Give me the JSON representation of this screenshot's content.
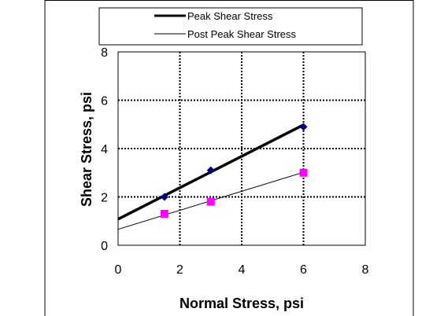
{
  "chart_data": {
    "type": "scatter",
    "xlabel": "Normal Stress, psi",
    "ylabel": "Shear Stress, psi",
    "xlim": [
      0,
      8
    ],
    "ylim": [
      0,
      8
    ],
    "xticks": [
      "0",
      "2",
      "4",
      "6",
      "8"
    ],
    "yticks": [
      "0",
      "2",
      "4",
      "6",
      "8"
    ],
    "grid": true,
    "legend_position": "top",
    "series": [
      {
        "name": "Peak Shear Stress",
        "marker": "diamond",
        "color": "#000080",
        "x": [
          1.5,
          3.0,
          6.0
        ],
        "y": [
          2.0,
          3.1,
          4.9
        ],
        "trendline": {
          "x": [
            0,
            6
          ],
          "y": [
            1.08,
            4.98
          ]
        }
      },
      {
        "name": "Post Peak Shear Stress",
        "marker": "square",
        "color": "#ff00ff",
        "x": [
          1.5,
          3.0,
          6.0
        ],
        "y": [
          1.3,
          1.8,
          3.0
        ],
        "trendline": {
          "x": [
            0,
            6
          ],
          "y": [
            0.66,
            3.02
          ]
        }
      }
    ]
  }
}
